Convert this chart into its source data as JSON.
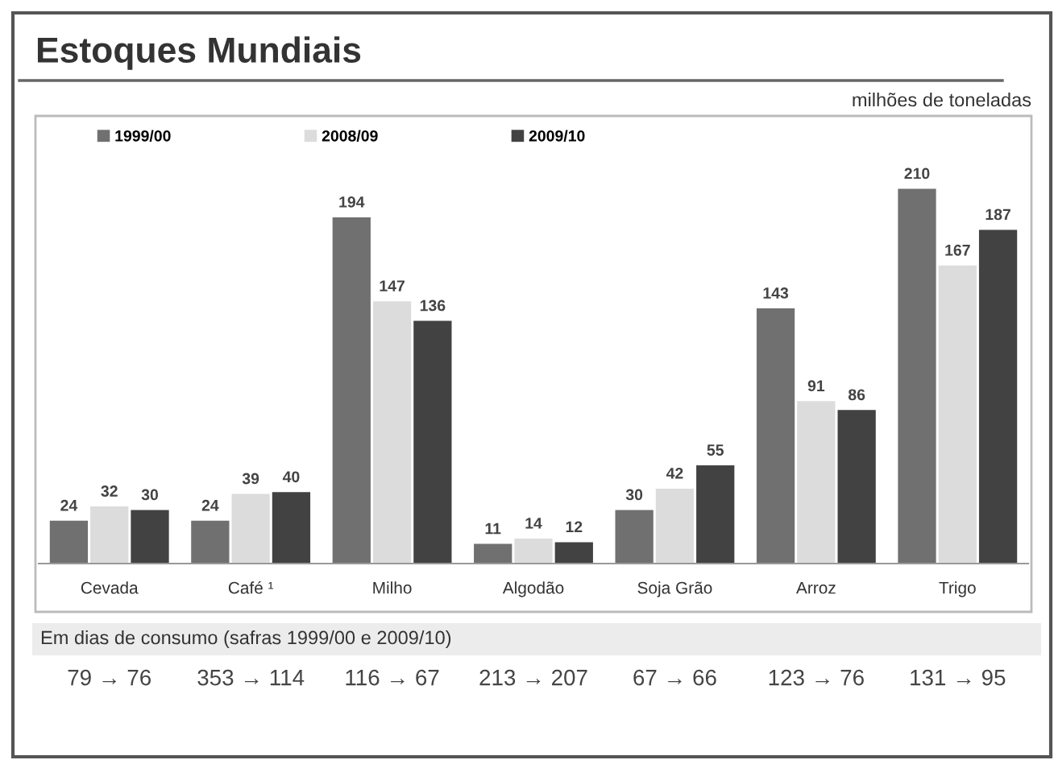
{
  "chart_data": {
    "type": "bar",
    "title": "Estoques Mundiais",
    "subtitle": "milhões de toneladas",
    "categories": [
      "Cevada",
      "Café ¹",
      "Milho",
      "Algodão",
      "Soja Grão",
      "Arroz",
      "Trigo"
    ],
    "series": [
      {
        "name": "1999/00",
        "color": "#707070",
        "values": [
          24,
          24,
          194,
          11,
          30,
          143,
          210
        ]
      },
      {
        "name": "2008/09",
        "color": "#dcdcdc",
        "values": [
          32,
          39,
          147,
          14,
          42,
          91,
          167
        ]
      },
      {
        "name": "2009/10",
        "color": "#424242",
        "values": [
          30,
          40,
          136,
          12,
          55,
          86,
          187
        ]
      }
    ],
    "data_labels": true,
    "legend": "top left",
    "tick_labels": "x",
    "annotations": [
      "Em dias de consumo (safras 1999/00 e 2009/10)",
      "79 → 76",
      "353 → 114",
      "116 → 67",
      "213 → 207",
      "67 → 66",
      "123 → 76",
      "131 → 95"
    ]
  }
}
